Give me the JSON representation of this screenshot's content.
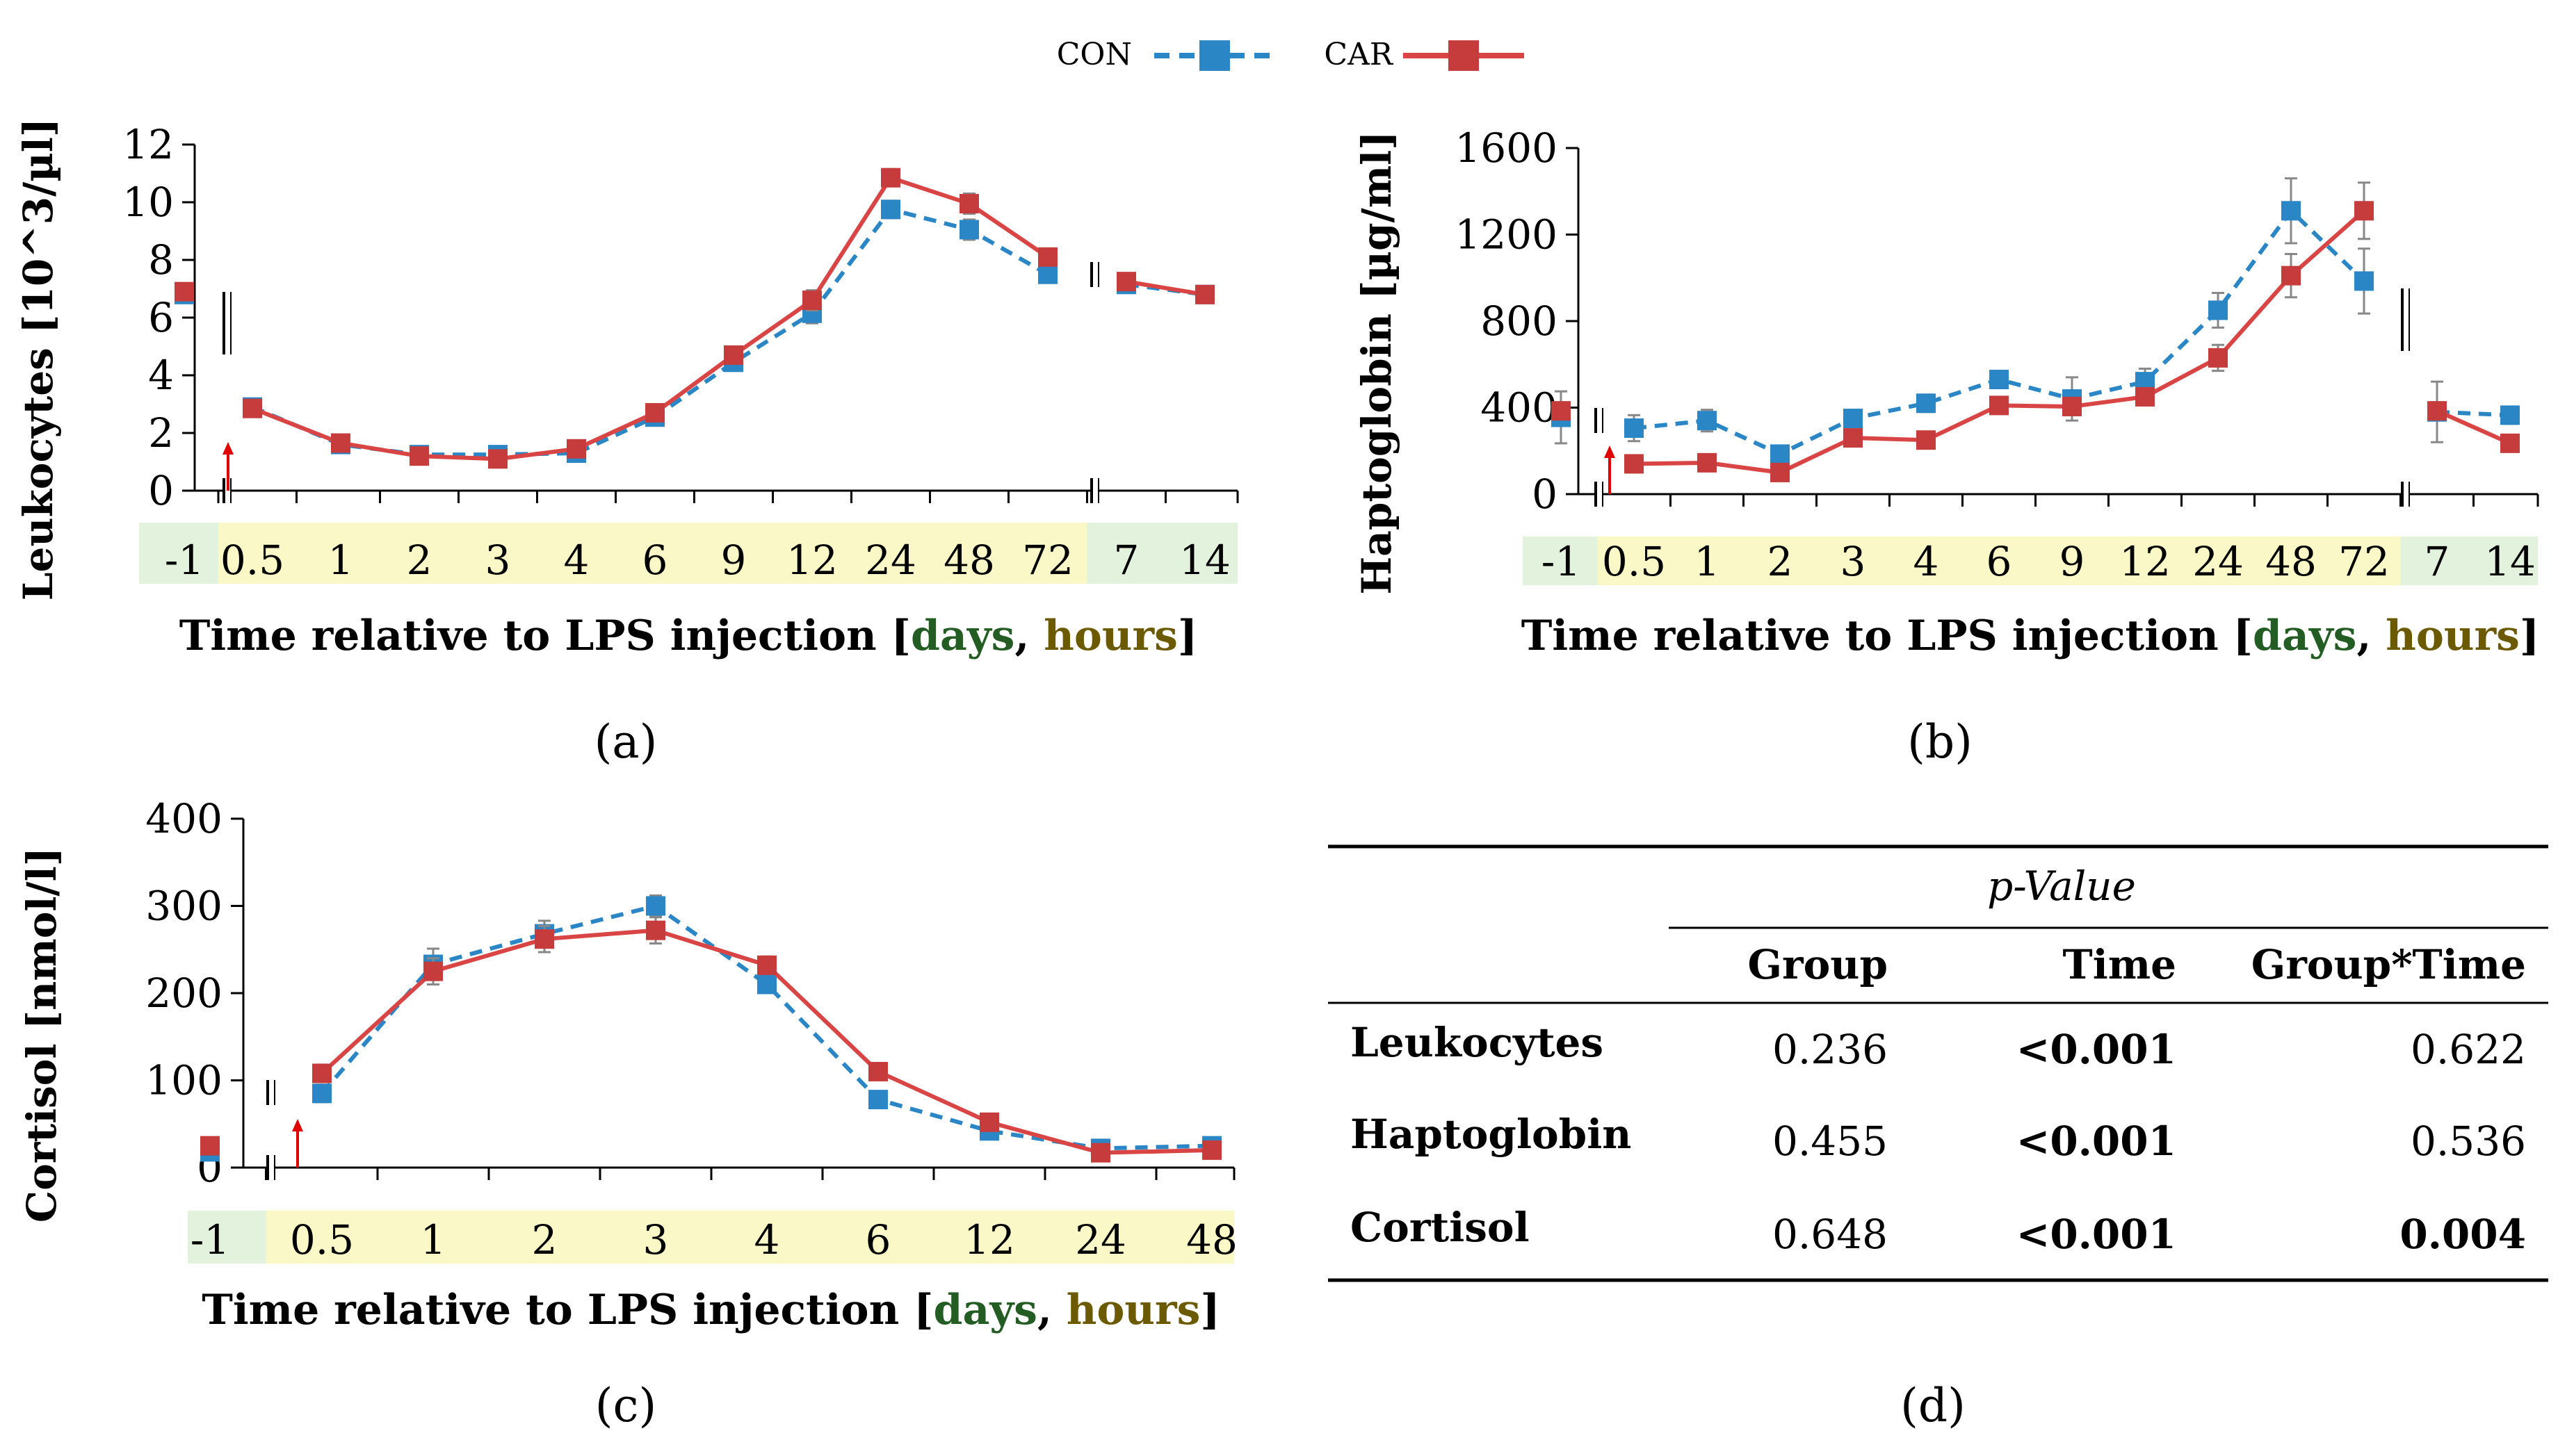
{
  "legend": {
    "items": [
      {
        "name": "CON",
        "color": "#2b86c5",
        "style": "dashed"
      },
      {
        "name": "CAR",
        "color": "#d94545",
        "style": "solid"
      }
    ]
  },
  "chart_data": [
    {
      "id": "a",
      "type": "line",
      "panel_label": "(a)",
      "ylabel": "Leukocytes [10^3/µl]",
      "xlabel_parts": [
        "Time relative to LPS injection [",
        "days",
        ", ",
        "hours",
        "]"
      ],
      "yticks": [
        "0",
        "2",
        "4",
        "6",
        "8",
        "10",
        "12"
      ],
      "ylim": [
        0,
        12
      ],
      "categories": [
        "-1",
        "0.5",
        "1",
        "2",
        "3",
        "4",
        "6",
        "9",
        "12",
        "24",
        "48",
        "72",
        "7",
        "14"
      ],
      "category_kind": [
        "days",
        "hours",
        "hours",
        "hours",
        "hours",
        "hours",
        "hours",
        "hours",
        "hours",
        "hours",
        "hours",
        "hours",
        "days",
        "days"
      ],
      "segments": [
        [
          0,
          0
        ],
        [
          1,
          11
        ],
        [
          12,
          13
        ]
      ],
      "lps_index": 1,
      "series": [
        {
          "name": "CON",
          "values": [
            6.8,
            2.9,
            1.6,
            1.25,
            1.25,
            1.3,
            2.55,
            4.45,
            6.15,
            9.75,
            9.05,
            7.5,
            7.15,
            6.8
          ],
          "err": [
            0.2,
            0.15,
            0.1,
            0.1,
            0.1,
            0.1,
            0.15,
            0.25,
            0.35,
            0.3,
            0.35,
            0.25,
            0.2,
            0.2
          ]
        },
        {
          "name": "CAR",
          "values": [
            6.9,
            2.85,
            1.65,
            1.2,
            1.1,
            1.45,
            2.7,
            4.7,
            6.6,
            10.85,
            9.95,
            8.1,
            7.25,
            6.8
          ],
          "err": [
            0.2,
            0.15,
            0.1,
            0.1,
            0.1,
            0.1,
            0.15,
            0.25,
            0.35,
            0.3,
            0.35,
            0.25,
            0.2,
            0.2
          ]
        }
      ]
    },
    {
      "id": "b",
      "type": "line",
      "panel_label": "(b)",
      "ylabel": "Haptoglobin [µg/ml]",
      "xlabel_parts": [
        "Time relative to LPS injection [",
        "days",
        ", ",
        "hours",
        "]"
      ],
      "yticks": [
        "0",
        "400",
        "800",
        "1200",
        "1600"
      ],
      "ylim": [
        0,
        1600
      ],
      "categories": [
        "-1",
        "0.5",
        "1",
        "2",
        "3",
        "4",
        "6",
        "9",
        "12",
        "24",
        "48",
        "72",
        "7",
        "14"
      ],
      "category_kind": [
        "days",
        "hours",
        "hours",
        "hours",
        "hours",
        "hours",
        "hours",
        "hours",
        "hours",
        "hours",
        "hours",
        "hours",
        "days",
        "days"
      ],
      "segments": [
        [
          0,
          0
        ],
        [
          1,
          11
        ],
        [
          12,
          13
        ]
      ],
      "lps_index": 1,
      "series": [
        {
          "name": "CON",
          "values": [
            355,
            305,
            340,
            185,
            350,
            420,
            530,
            440,
            520,
            850,
            1310,
            985,
            380,
            365
          ],
          "err": [
            120,
            60,
            50,
            40,
            40,
            40,
            40,
            100,
            60,
            80,
            150,
            150,
            140,
            40
          ]
        },
        {
          "name": "CAR",
          "values": [
            385,
            140,
            145,
            100,
            260,
            250,
            410,
            405,
            450,
            630,
            1010,
            1310,
            385,
            235
          ],
          "err": [
            40,
            40,
            30,
            30,
            30,
            30,
            30,
            40,
            40,
            60,
            100,
            130,
            40,
            30
          ]
        }
      ]
    },
    {
      "id": "c",
      "type": "line",
      "panel_label": "(c)",
      "ylabel": "Cortisol [nmol/l]",
      "xlabel_parts": [
        "Time relative to LPS injection [",
        "days",
        ", ",
        "hours",
        "]"
      ],
      "yticks": [
        "0",
        "100",
        "200",
        "300",
        "400"
      ],
      "ylim": [
        0,
        400
      ],
      "categories": [
        "-1",
        "0.5",
        "1",
        "2",
        "3",
        "4",
        "6",
        "12",
        "24",
        "48"
      ],
      "category_kind": [
        "days",
        "hours",
        "hours",
        "hours",
        "hours",
        "hours",
        "hours",
        "hours",
        "hours",
        "hours"
      ],
      "segments": [
        [
          0,
          0
        ],
        [
          1,
          9
        ]
      ],
      "lps_index": 1,
      "series": [
        {
          "name": "CON",
          "values": [
            18,
            85,
            233,
            268,
            300,
            210,
            78,
            42,
            22,
            25
          ],
          "err": [
            8,
            10,
            18,
            15,
            12,
            10,
            8,
            6,
            5,
            5
          ]
        },
        {
          "name": "CAR",
          "values": [
            25,
            108,
            225,
            262,
            272,
            232,
            110,
            52,
            17,
            20
          ],
          "err": [
            8,
            10,
            15,
            15,
            15,
            10,
            8,
            6,
            5,
            5
          ]
        }
      ]
    }
  ],
  "table": {
    "panel_label": "(d)",
    "super_header": "p-Value",
    "columns": [
      "Group",
      "Time",
      "Group*Time"
    ],
    "rows": [
      {
        "label": "Leukocytes",
        "cells": [
          {
            "text": "0.236",
            "bold": false
          },
          {
            "text": "<0.001",
            "bold": true
          },
          {
            "text": "0.622",
            "bold": false
          }
        ]
      },
      {
        "label": "Haptoglobin",
        "cells": [
          {
            "text": "0.455",
            "bold": false
          },
          {
            "text": "<0.001",
            "bold": true
          },
          {
            "text": "0.536",
            "bold": false
          }
        ]
      },
      {
        "label": "Cortisol",
        "cells": [
          {
            "text": "0.648",
            "bold": false
          },
          {
            "text": "<0.001",
            "bold": true
          },
          {
            "text": "0.004",
            "bold": true
          }
        ]
      }
    ]
  }
}
